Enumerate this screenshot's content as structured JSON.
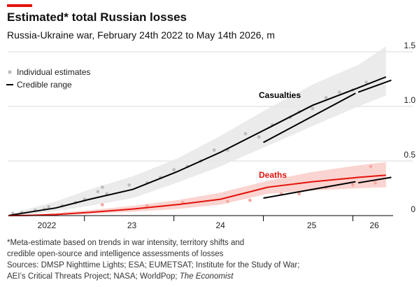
{
  "chart_data": {
    "type": "line",
    "title": "Estimated* total Russian losses",
    "subtitle": "Russia-Ukraine war, February 24th 2022 to May 14th 2026, m",
    "ylim": [
      0,
      1.5
    ],
    "yticks": [
      0,
      0.5,
      {
        "value": 1,
        "label": "1.0"
      },
      1.5
    ],
    "xlim": [
      2022.15,
      2026.45
    ],
    "xticks": [
      2023,
      2024,
      2025,
      2026
    ],
    "x_labels": [
      {
        "value": 2022.58,
        "label": "2022"
      },
      {
        "value": 2023.53,
        "label": "23"
      },
      {
        "value": 2024.52,
        "label": "24"
      },
      {
        "value": 2025.54,
        "label": "25"
      },
      {
        "value": 2026.24,
        "label": "26"
      }
    ],
    "grid": true,
    "series": [
      {
        "name": "Individual estimates",
        "type": "scatter",
        "color": "#bdbdbd",
        "x": [
          2022.2,
          2022.3,
          2022.45,
          2022.55,
          2022.6,
          2022.75,
          2022.9,
          2023.0,
          2023.15,
          2023.2,
          2023.25,
          2023.5,
          2023.7,
          2023.85,
          2024.0,
          2024.15,
          2024.3,
          2024.45,
          2024.6,
          2024.8,
          2024.95,
          2025.1,
          2025.3,
          2025.4,
          2025.55,
          2025.7,
          2025.85,
          2026.0,
          2026.15
        ],
        "values": [
          0.02,
          0.03,
          0.05,
          0.06,
          0.08,
          0.09,
          0.12,
          0.15,
          0.22,
          0.26,
          0.2,
          0.28,
          0.3,
          0.35,
          0.42,
          0.45,
          0.5,
          0.6,
          0.6,
          0.75,
          0.72,
          0.83,
          0.9,
          0.95,
          0.98,
          1.08,
          1.13,
          1.15,
          1.22
        ]
      },
      {
        "type": "scatter",
        "color": "#f5a9a3",
        "x": [
          2023.2,
          2023.7,
          2024.1,
          2024.6,
          2024.85,
          2025.2,
          2025.4,
          2025.7,
          2026.0,
          2026.2,
          2026.25
        ],
        "values": [
          0.1,
          0.09,
          0.12,
          0.13,
          0.14,
          0.2,
          0.2,
          0.26,
          0.28,
          0.45,
          0.3
        ]
      },
      {
        "type": "band",
        "color": "#e8e8e8",
        "x": [
          2022.15,
          2022.37,
          2022.68,
          2023.06,
          2023.54,
          2024.03,
          2024.52,
          2025.05,
          2025.55,
          2026.06,
          2026.37
        ],
        "high": [
          0.01,
          0.06,
          0.13,
          0.24,
          0.36,
          0.52,
          0.73,
          0.98,
          1.2,
          1.38,
          1.55
        ],
        "low": [
          0,
          0.01,
          0.04,
          0.09,
          0.16,
          0.3,
          0.45,
          0.64,
          0.82,
          1.0,
          1.1
        ]
      },
      {
        "type": "band",
        "color": "#f9cdc8",
        "x": [
          2022.15,
          2022.37,
          2022.68,
          2023.06,
          2023.54,
          2024.03,
          2024.52,
          2025.05,
          2025.55,
          2026.06,
          2026.37
        ],
        "high": [
          0.005,
          0.01,
          0.025,
          0.05,
          0.09,
          0.14,
          0.21,
          0.32,
          0.4,
          0.46,
          0.49
        ],
        "low": [
          0,
          0,
          0.005,
          0.015,
          0.035,
          0.06,
          0.1,
          0.2,
          0.23,
          0.25,
          0.26
        ]
      },
      {
        "name": "Credible range",
        "type": "line",
        "color": "#000000",
        "x": [
          2022.15,
          2022.37,
          2022.68,
          2023.06,
          2023.54,
          2024.03,
          2024.52,
          2025.05,
          2025.55,
          2026.06,
          2026.37
        ],
        "values": [
          0,
          0.03,
          0.07,
          0.15,
          0.24,
          0.4,
          0.58,
          0.8,
          1.01,
          1.17,
          1.27
        ]
      },
      {
        "type": "line",
        "color": "#000000",
        "x": [
          2025.0,
          2026.03,
          2026.04,
          2026.06,
          2026.43
        ],
        "values": [
          0.67,
          1.12,
          null,
          1.13,
          1.24
        ]
      },
      {
        "type": "line",
        "color": "#e3120b",
        "x": [
          2022.15,
          2022.37,
          2022.68,
          2023.06,
          2023.54,
          2024.03,
          2024.52,
          2025.05,
          2025.55,
          2026.06,
          2026.37
        ],
        "values": [
          0,
          0.002,
          0.01,
          0.03,
          0.06,
          0.1,
          0.15,
          0.26,
          0.31,
          0.35,
          0.37
        ]
      },
      {
        "type": "line",
        "color": "#000000",
        "x": [
          2025.0,
          2026.03,
          2026.04,
          2026.06,
          2026.43
        ],
        "values": [
          0.16,
          0.31,
          null,
          0.3,
          0.35
        ]
      }
    ],
    "labels": [
      "Casualties",
      "Deaths"
    ],
    "notes": [
      "*Meta-estimate based on trends in war intensity, territory shifts and",
      "credible open-source and intelligence assessments of losses",
      "Sources: DMSP Nighttime Lights; ESA; EUMETSAT; Institute for the Study of War;",
      "AEI’s Critical Threats Project; NASA; WorldPop;",
      "The Economist"
    ]
  }
}
